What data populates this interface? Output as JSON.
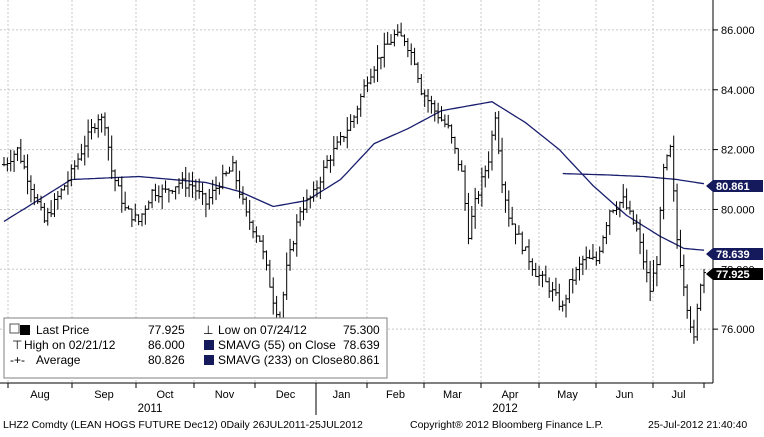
{
  "chart_data": {
    "type": "ohlc",
    "ylim": [
      74.2,
      87.0
    ],
    "y_ticks": [
      76.0,
      78.0,
      80.0,
      82.0,
      84.0,
      86.0
    ],
    "y_tick_labels": [
      "76.000",
      "78.000",
      "80.000",
      "82.000",
      "84.000",
      "86.000"
    ],
    "x_months": [
      "Aug",
      "Sep",
      "Oct",
      "Nov",
      "Dec",
      "Jan",
      "Feb",
      "Mar",
      "Apr",
      "May",
      "Jun",
      "Jul"
    ],
    "x_years": [
      "2011",
      "2012"
    ],
    "grid": true,
    "legend_position": "bottom-left",
    "price_anchors": [
      [
        0,
        81.5
      ],
      [
        4,
        82.0
      ],
      [
        8,
        80.8
      ],
      [
        12,
        79.6
      ],
      [
        16,
        80.4
      ],
      [
        20,
        81.2
      ],
      [
        24,
        82.2
      ],
      [
        28,
        83.1
      ],
      [
        30,
        82.9
      ],
      [
        32,
        81.3
      ],
      [
        36,
        80.0
      ],
      [
        40,
        79.6
      ],
      [
        44,
        80.6
      ],
      [
        48,
        80.6
      ],
      [
        52,
        80.9
      ],
      [
        56,
        80.8
      ],
      [
        60,
        80.2
      ],
      [
        64,
        80.9
      ],
      [
        68,
        81.4
      ],
      [
        72,
        79.8
      ],
      [
        76,
        79.0
      ],
      [
        80,
        77.0
      ],
      [
        82,
        76.3
      ],
      [
        84,
        78.0
      ],
      [
        88,
        80.0
      ],
      [
        92,
        80.5
      ],
      [
        96,
        81.6
      ],
      [
        100,
        82.3
      ],
      [
        104,
        83.1
      ],
      [
        108,
        84.4
      ],
      [
        112,
        85.2
      ],
      [
        116,
        85.8
      ],
      [
        119,
        85.7
      ],
      [
        122,
        85.0
      ],
      [
        124,
        84.0
      ],
      [
        128,
        83.3
      ],
      [
        132,
        82.7
      ],
      [
        136,
        81.2
      ],
      [
        138,
        79.2
      ],
      [
        140,
        80.2
      ],
      [
        144,
        81.7
      ],
      [
        146,
        83.2
      ],
      [
        148,
        81.0
      ],
      [
        150,
        79.8
      ],
      [
        154,
        78.8
      ],
      [
        158,
        77.9
      ],
      [
        162,
        77.4
      ],
      [
        166,
        76.7
      ],
      [
        168,
        77.5
      ],
      [
        172,
        78.3
      ],
      [
        176,
        78.3
      ],
      [
        180,
        80.0
      ],
      [
        184,
        80.3
      ],
      [
        188,
        79.3
      ],
      [
        192,
        77.3
      ],
      [
        194,
        78.3
      ],
      [
        196,
        81.3
      ],
      [
        198,
        82.0
      ],
      [
        200,
        79.0
      ],
      [
        203,
        76.8
      ],
      [
        205,
        75.6
      ],
      [
        207,
        77.6
      ],
      [
        208,
        77.925
      ]
    ],
    "sma_55_anchors": [
      [
        0,
        79.6
      ],
      [
        10,
        80.3
      ],
      [
        20,
        81.0
      ],
      [
        40,
        81.1
      ],
      [
        60,
        80.9
      ],
      [
        70,
        80.6
      ],
      [
        80,
        80.1
      ],
      [
        90,
        80.3
      ],
      [
        100,
        81.0
      ],
      [
        110,
        82.2
      ],
      [
        120,
        82.7
      ],
      [
        130,
        83.3
      ],
      [
        140,
        83.5
      ],
      [
        145,
        83.6
      ],
      [
        155,
        82.9
      ],
      [
        165,
        82.0
      ],
      [
        175,
        80.8
      ],
      [
        185,
        79.8
      ],
      [
        195,
        79.1
      ],
      [
        202,
        78.7
      ],
      [
        208,
        78.639
      ]
    ],
    "sma_233_anchors": [
      [
        166,
        81.2
      ],
      [
        180,
        81.15
      ],
      [
        190,
        81.1
      ],
      [
        200,
        81.0
      ],
      [
        208,
        80.861
      ]
    ],
    "last_price_tag": "77.925",
    "sma55_tag": "78.639",
    "sma233_tag": "80.861",
    "colors": {
      "bars": "#000000",
      "sma55": "#1a1f6e",
      "sma233": "#1a1f6e",
      "tag_black": "#000000",
      "tag_navy": "#151a5c",
      "grid": "#c8c8c8",
      "legend_bg": "#ffffff"
    }
  },
  "legend": {
    "row1": {
      "label": "Last Price",
      "value": "77.925",
      "label2": "Low on 07/24/12",
      "value2": "75.300"
    },
    "row2": {
      "label": "High on 02/21/12",
      "value": "86.000",
      "label2": "SMAVG (55) on Close",
      "value2": "78.639"
    },
    "row3": {
      "label": "Average",
      "value": "80.826",
      "label2": "SMAVG (233) on Close",
      "value2": "80.861"
    }
  },
  "footer": {
    "left": "LHZ2 Comdty (LEAN HOGS FUTURE  Dec12) 0Daily 26JUL2011-25JUL2012",
    "center": "Copyright® 2012 Bloomberg Finance L.P.",
    "right": "25-Jul-2012  21:40:40"
  }
}
